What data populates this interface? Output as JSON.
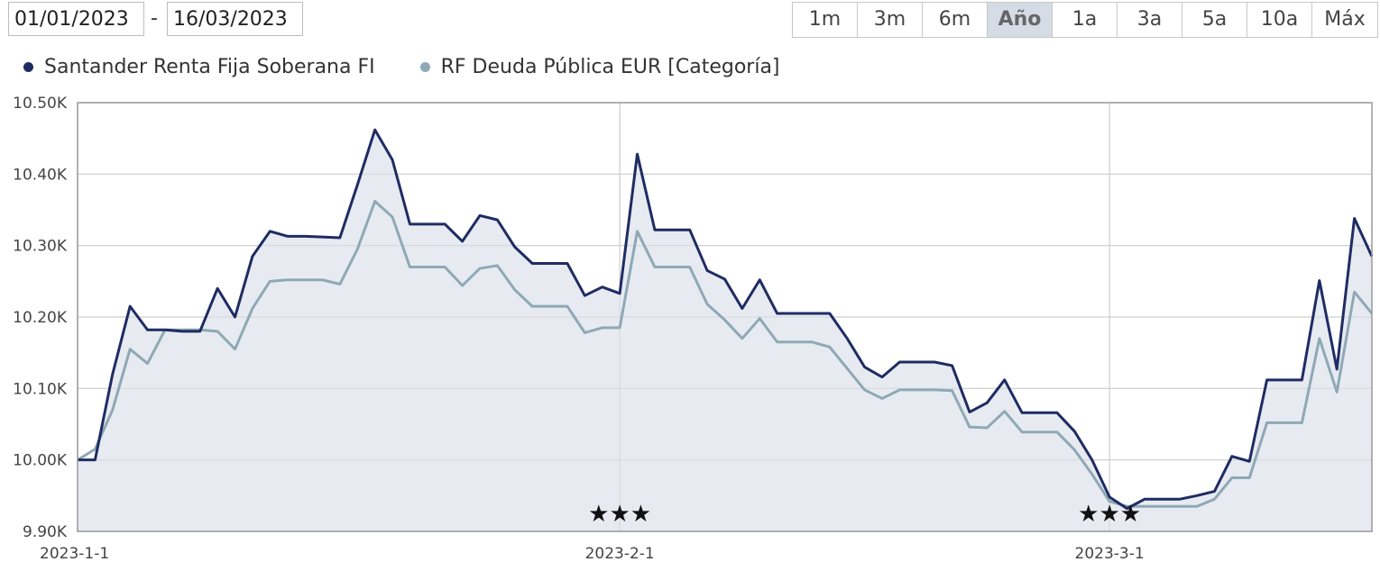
{
  "date_range": {
    "from": "01/01/2023",
    "separator": "-",
    "to": "16/03/2023"
  },
  "range_buttons": [
    {
      "label": "1m",
      "active": false
    },
    {
      "label": "3m",
      "active": false
    },
    {
      "label": "6m",
      "active": false
    },
    {
      "label": "Año",
      "active": true
    },
    {
      "label": "1a",
      "active": false
    },
    {
      "label": "3a",
      "active": false
    },
    {
      "label": "5a",
      "active": false
    },
    {
      "label": "10a",
      "active": false
    },
    {
      "label": "Máx",
      "active": false
    }
  ],
  "colors": {
    "series1": "#1f2c63",
    "series2": "#8ea9b5",
    "area": "#e3e7ef",
    "grid": "#cfcfcf"
  },
  "chart_data": {
    "type": "line",
    "y_tick_labels": [
      "9.90K",
      "10.00K",
      "10.10K",
      "10.20K",
      "10.30K",
      "10.40K",
      "10.50K"
    ],
    "y_ticks": [
      9900,
      10000,
      10100,
      10200,
      10300,
      10400,
      10500
    ],
    "ylim": [
      9900,
      10500
    ],
    "x_tick_labels": [
      "2023-1-1",
      "2023-2-1",
      "2023-3-1"
    ],
    "x_ticks": [
      0,
      31,
      59
    ],
    "xlim": [
      0,
      74
    ],
    "grid": true,
    "legend_position": "top-left",
    "stars": [
      {
        "x": 31,
        "label": "★★★"
      },
      {
        "x": 59,
        "label": "★★★"
      }
    ],
    "series": [
      {
        "name": "Santander Renta Fija Soberana FI",
        "points": [
          [
            0,
            10000
          ],
          [
            1,
            10000
          ],
          [
            2,
            10120
          ],
          [
            3,
            10215
          ],
          [
            4,
            10182
          ],
          [
            5,
            10182
          ],
          [
            6,
            10180
          ],
          [
            7,
            10180
          ],
          [
            8,
            10240
          ],
          [
            9,
            10200
          ],
          [
            10,
            10285
          ],
          [
            11,
            10320
          ],
          [
            12,
            10313
          ],
          [
            13,
            10313
          ],
          [
            14,
            10312
          ],
          [
            15,
            10311
          ],
          [
            16,
            10385
          ],
          [
            17,
            10462
          ],
          [
            18,
            10420
          ],
          [
            19,
            10330
          ],
          [
            20,
            10330
          ],
          [
            21,
            10330
          ],
          [
            22,
            10306
          ],
          [
            23,
            10342
          ],
          [
            24,
            10336
          ],
          [
            25,
            10298
          ],
          [
            26,
            10275
          ],
          [
            27,
            10275
          ],
          [
            28,
            10275
          ],
          [
            29,
            10230
          ],
          [
            30,
            10242
          ],
          [
            31,
            10233
          ],
          [
            32,
            10428
          ],
          [
            33,
            10322
          ],
          [
            34,
            10322
          ],
          [
            35,
            10322
          ],
          [
            36,
            10265
          ],
          [
            37,
            10253
          ],
          [
            38,
            10212
          ],
          [
            39,
            10252
          ],
          [
            40,
            10205
          ],
          [
            41,
            10205
          ],
          [
            42,
            10205
          ],
          [
            43,
            10205
          ],
          [
            44,
            10170
          ],
          [
            45,
            10130
          ],
          [
            46,
            10116
          ],
          [
            47,
            10137
          ],
          [
            48,
            10137
          ],
          [
            49,
            10137
          ],
          [
            50,
            10132
          ],
          [
            51,
            10067
          ],
          [
            52,
            10080
          ],
          [
            53,
            10112
          ],
          [
            54,
            10066
          ],
          [
            55,
            10066
          ],
          [
            56,
            10066
          ],
          [
            57,
            10040
          ],
          [
            58,
            10000
          ],
          [
            59,
            9948
          ],
          [
            60,
            9932
          ],
          [
            61,
            9945
          ],
          [
            62,
            9945
          ],
          [
            63,
            9945
          ],
          [
            64,
            9950
          ],
          [
            65,
            9956
          ],
          [
            66,
            10005
          ],
          [
            67,
            9998
          ],
          [
            68,
            10112
          ],
          [
            69,
            10112
          ],
          [
            70,
            10112
          ],
          [
            71,
            10251
          ],
          [
            72,
            10127
          ],
          [
            73,
            10338
          ],
          [
            74,
            10285
          ]
        ]
      },
      {
        "name": "RF Deuda Pública EUR [Categoría]",
        "points": [
          [
            0,
            10000
          ],
          [
            1,
            10015
          ],
          [
            2,
            10070
          ],
          [
            3,
            10155
          ],
          [
            4,
            10135
          ],
          [
            5,
            10182
          ],
          [
            6,
            10182
          ],
          [
            7,
            10182
          ],
          [
            8,
            10180
          ],
          [
            9,
            10155
          ],
          [
            10,
            10212
          ],
          [
            11,
            10250
          ],
          [
            12,
            10252
          ],
          [
            13,
            10252
          ],
          [
            14,
            10252
          ],
          [
            15,
            10246
          ],
          [
            16,
            10295
          ],
          [
            17,
            10362
          ],
          [
            18,
            10340
          ],
          [
            19,
            10270
          ],
          [
            20,
            10270
          ],
          [
            21,
            10270
          ],
          [
            22,
            10244
          ],
          [
            23,
            10268
          ],
          [
            24,
            10272
          ],
          [
            25,
            10238
          ],
          [
            26,
            10215
          ],
          [
            27,
            10215
          ],
          [
            28,
            10215
          ],
          [
            29,
            10178
          ],
          [
            30,
            10185
          ],
          [
            31,
            10185
          ],
          [
            32,
            10320
          ],
          [
            33,
            10270
          ],
          [
            34,
            10270
          ],
          [
            35,
            10270
          ],
          [
            36,
            10218
          ],
          [
            37,
            10196
          ],
          [
            38,
            10170
          ],
          [
            39,
            10198
          ],
          [
            40,
            10165
          ],
          [
            41,
            10165
          ],
          [
            42,
            10165
          ],
          [
            43,
            10158
          ],
          [
            44,
            10128
          ],
          [
            45,
            10098
          ],
          [
            46,
            10086
          ],
          [
            47,
            10098
          ],
          [
            48,
            10098
          ],
          [
            49,
            10098
          ],
          [
            50,
            10097
          ],
          [
            51,
            10046
          ],
          [
            52,
            10045
          ],
          [
            53,
            10068
          ],
          [
            54,
            10039
          ],
          [
            55,
            10039
          ],
          [
            56,
            10039
          ],
          [
            57,
            10014
          ],
          [
            58,
            9980
          ],
          [
            59,
            9942
          ],
          [
            60,
            9935
          ],
          [
            61,
            9935
          ],
          [
            62,
            9935
          ],
          [
            63,
            9935
          ],
          [
            64,
            9935
          ],
          [
            65,
            9945
          ],
          [
            66,
            9975
          ],
          [
            67,
            9975
          ],
          [
            68,
            10052
          ],
          [
            69,
            10052
          ],
          [
            70,
            10052
          ],
          [
            71,
            10170
          ],
          [
            72,
            10095
          ],
          [
            73,
            10235
          ],
          [
            74,
            10205
          ]
        ]
      }
    ]
  }
}
